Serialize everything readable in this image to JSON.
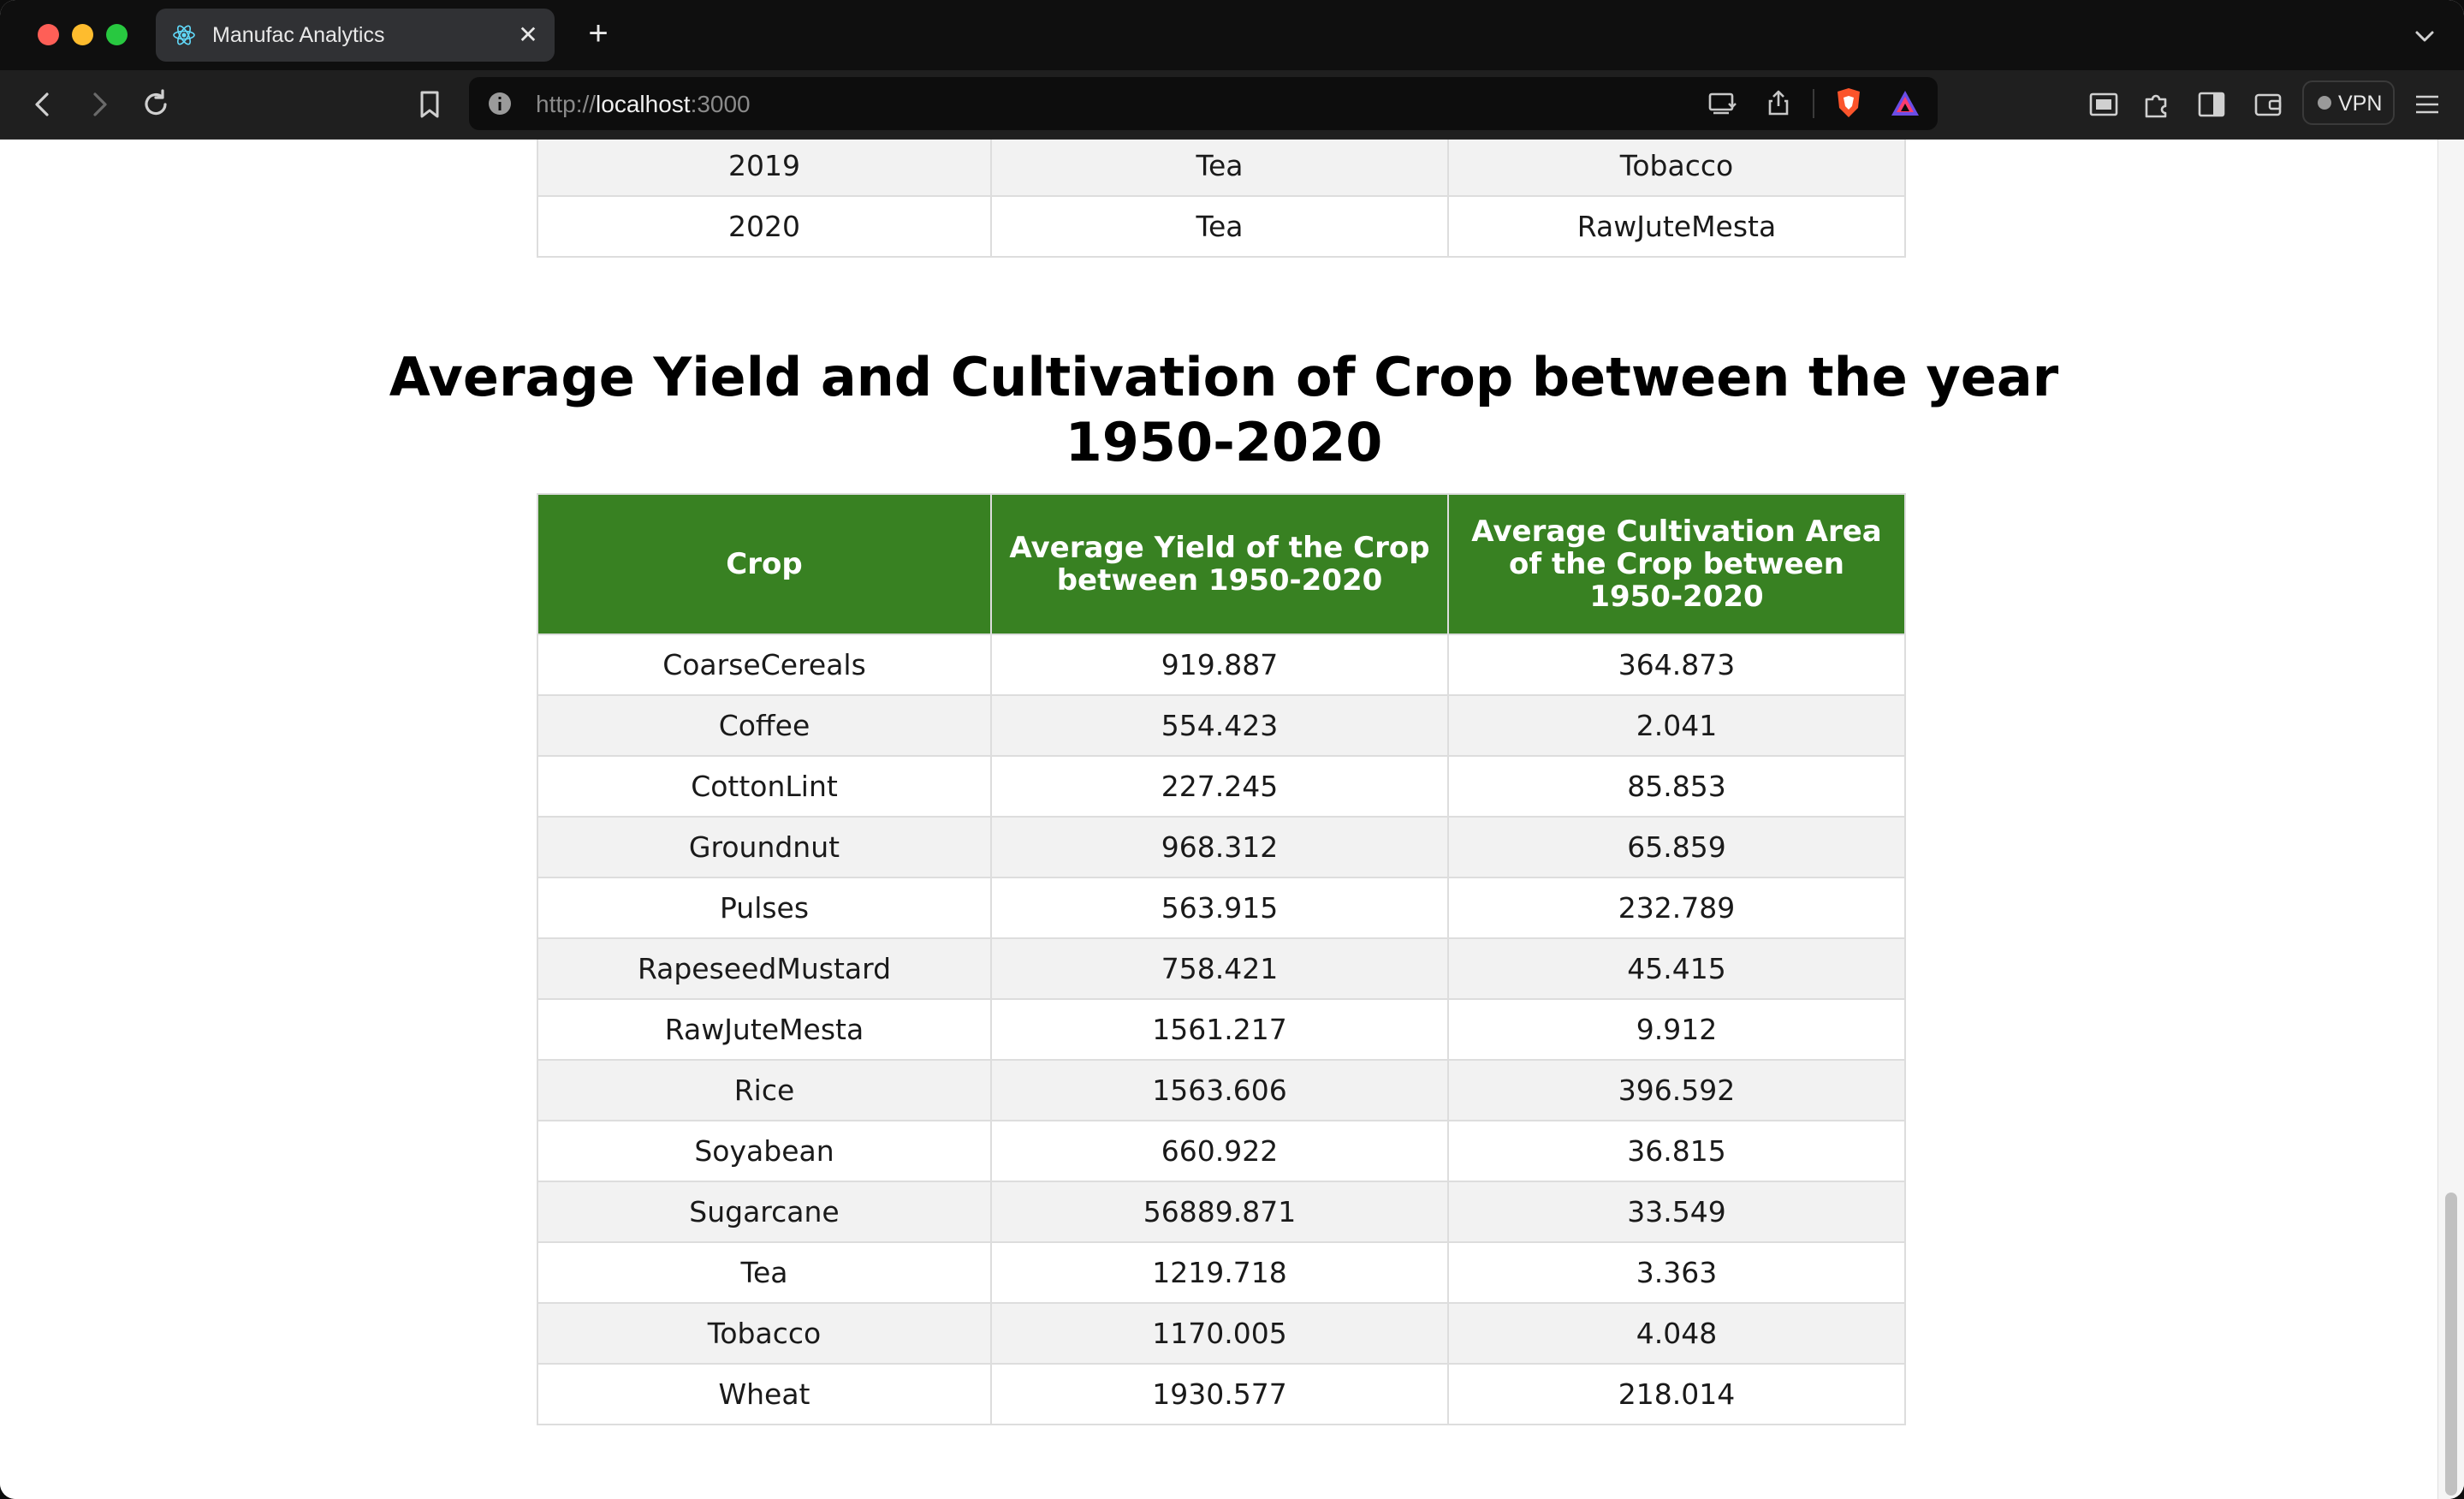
{
  "browser": {
    "tab_title": "Manufac Analytics",
    "tab_close_glyph": "✕",
    "new_tab_glyph": "+",
    "url_scheme": "http://",
    "url_host": "localhost",
    "url_port": ":3000",
    "vpn_label": "VPN",
    "icons": [
      "back-icon",
      "forward-icon",
      "reload-icon",
      "bookmark-icon",
      "site-info-icon",
      "install-app-icon",
      "share-icon",
      "brave-shields-icon",
      "brave-rewards-icon",
      "picture-in-picture-icon",
      "extensions-icon",
      "sidebar-icon",
      "wallet-icon",
      "menu-icon"
    ]
  },
  "previous_table": {
    "rows": [
      [
        "2019",
        "Tea",
        "Tobacco"
      ],
      [
        "2020",
        "Tea",
        "RawJuteMesta"
      ]
    ]
  },
  "section": {
    "title": "Average Yield and Cultivation of Crop between the year 1950-2020"
  },
  "crop_table": {
    "headers": [
      "Crop",
      "Average Yield of the Crop between 1950-2020",
      "Average Cultivation Area of the Crop between 1950-2020"
    ],
    "header_color": "#388122",
    "rows": [
      [
        "CoarseCereals",
        "919.887",
        "364.873"
      ],
      [
        "Coffee",
        "554.423",
        "2.041"
      ],
      [
        "CottonLint",
        "227.245",
        "85.853"
      ],
      [
        "Groundnut",
        "968.312",
        "65.859"
      ],
      [
        "Pulses",
        "563.915",
        "232.789"
      ],
      [
        "RapeseedMustard",
        "758.421",
        "45.415"
      ],
      [
        "RawJuteMesta",
        "1561.217",
        "9.912"
      ],
      [
        "Rice",
        "1563.606",
        "396.592"
      ],
      [
        "Soyabean",
        "660.922",
        "36.815"
      ],
      [
        "Sugarcane",
        "56889.871",
        "33.549"
      ],
      [
        "Tea",
        "1219.718",
        "3.363"
      ],
      [
        "Tobacco",
        "1170.005",
        "4.048"
      ],
      [
        "Wheat",
        "1930.577",
        "218.014"
      ]
    ]
  }
}
